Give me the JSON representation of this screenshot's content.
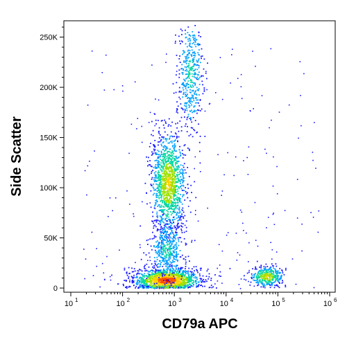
{
  "chart_data": {
    "type": "scatter",
    "title": "",
    "xlabel": "CD79a APC",
    "ylabel": "Side Scatter",
    "x_scale": "log",
    "xlim": [
      10,
      1000000
    ],
    "ylim": [
      0,
      262144
    ],
    "grid": false,
    "legend": "none",
    "x_tick_labels": [
      {
        "value": 10,
        "base": "10",
        "exp": "1"
      },
      {
        "value": 100,
        "base": "10",
        "exp": "2"
      },
      {
        "value": 1000,
        "base": "10",
        "exp": "3"
      },
      {
        "value": 10000,
        "base": "10",
        "exp": "4"
      },
      {
        "value": 100000,
        "base": "10",
        "exp": "5"
      },
      {
        "value": 1000000,
        "base": "10",
        "exp": "6"
      }
    ],
    "y_tick_labels": [
      {
        "value": 0,
        "label": "0"
      },
      {
        "value": 50000,
        "label": "50K"
      },
      {
        "value": 100000,
        "label": "100K"
      },
      {
        "value": 150000,
        "label": "150K"
      },
      {
        "value": 200000,
        "label": "200K"
      },
      {
        "value": 250000,
        "label": "250K"
      }
    ],
    "density_colors": [
      "#1a1aff",
      "#00a0ff",
      "#00d8a0",
      "#a0e000",
      "#ffd000",
      "#ff5000",
      "#e00000"
    ],
    "populations": [
      {
        "x_median": 700,
        "y_mean": 8000,
        "x_spread_log": 0.32,
        "y_spread": 6000,
        "count": 1400,
        "density": "high"
      },
      {
        "x_median": 750,
        "y_mean": 105000,
        "x_spread_log": 0.16,
        "y_spread": 25000,
        "count": 1300,
        "density": "medium"
      },
      {
        "x_median": 700,
        "y_mean": 38000,
        "x_spread_log": 0.16,
        "y_spread": 14000,
        "count": 450,
        "density": "low"
      },
      {
        "x_median": 2000,
        "y_mean": 215000,
        "x_spread_log": 0.12,
        "y_spread": 28000,
        "count": 450,
        "density": "low"
      },
      {
        "x_median": 60000,
        "y_mean": 12000,
        "x_spread_log": 0.15,
        "y_spread": 5000,
        "count": 380,
        "density": "medium"
      }
    ]
  }
}
